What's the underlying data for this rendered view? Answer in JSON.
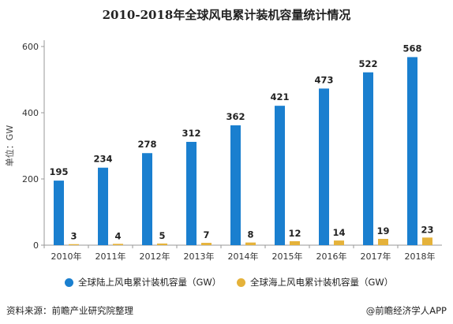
{
  "colors": {
    "onshore": "#1a7fcf",
    "offshore": "#e5b23a",
    "axis": "#999999",
    "text": "#222222"
  },
  "footer": {
    "source": "资料来源：前瞻产业研究院整理",
    "brand": "@前瞻经济学人APP"
  },
  "chart_data": {
    "type": "bar",
    "title": "2010-2018年全球风电累计装机容量统计情况",
    "ylabel": "单位：GW",
    "ylim": [
      0,
      600
    ],
    "yticks": [
      0,
      200,
      400,
      600
    ],
    "categories": [
      "2010年",
      "2011年",
      "2012年",
      "2013年",
      "2014年",
      "2015年",
      "2016年",
      "2017年",
      "2018年"
    ],
    "series": [
      {
        "name": "全球陆上风电累计装机容量（GW）",
        "values": [
          195,
          234,
          278,
          312,
          362,
          421,
          473,
          522,
          568
        ]
      },
      {
        "name": "全球海上风电累计装机容量（GW）",
        "values": [
          3,
          4,
          5,
          7,
          8,
          12,
          14,
          19,
          23
        ]
      }
    ],
    "grid": false,
    "legend_position": "bottom"
  }
}
